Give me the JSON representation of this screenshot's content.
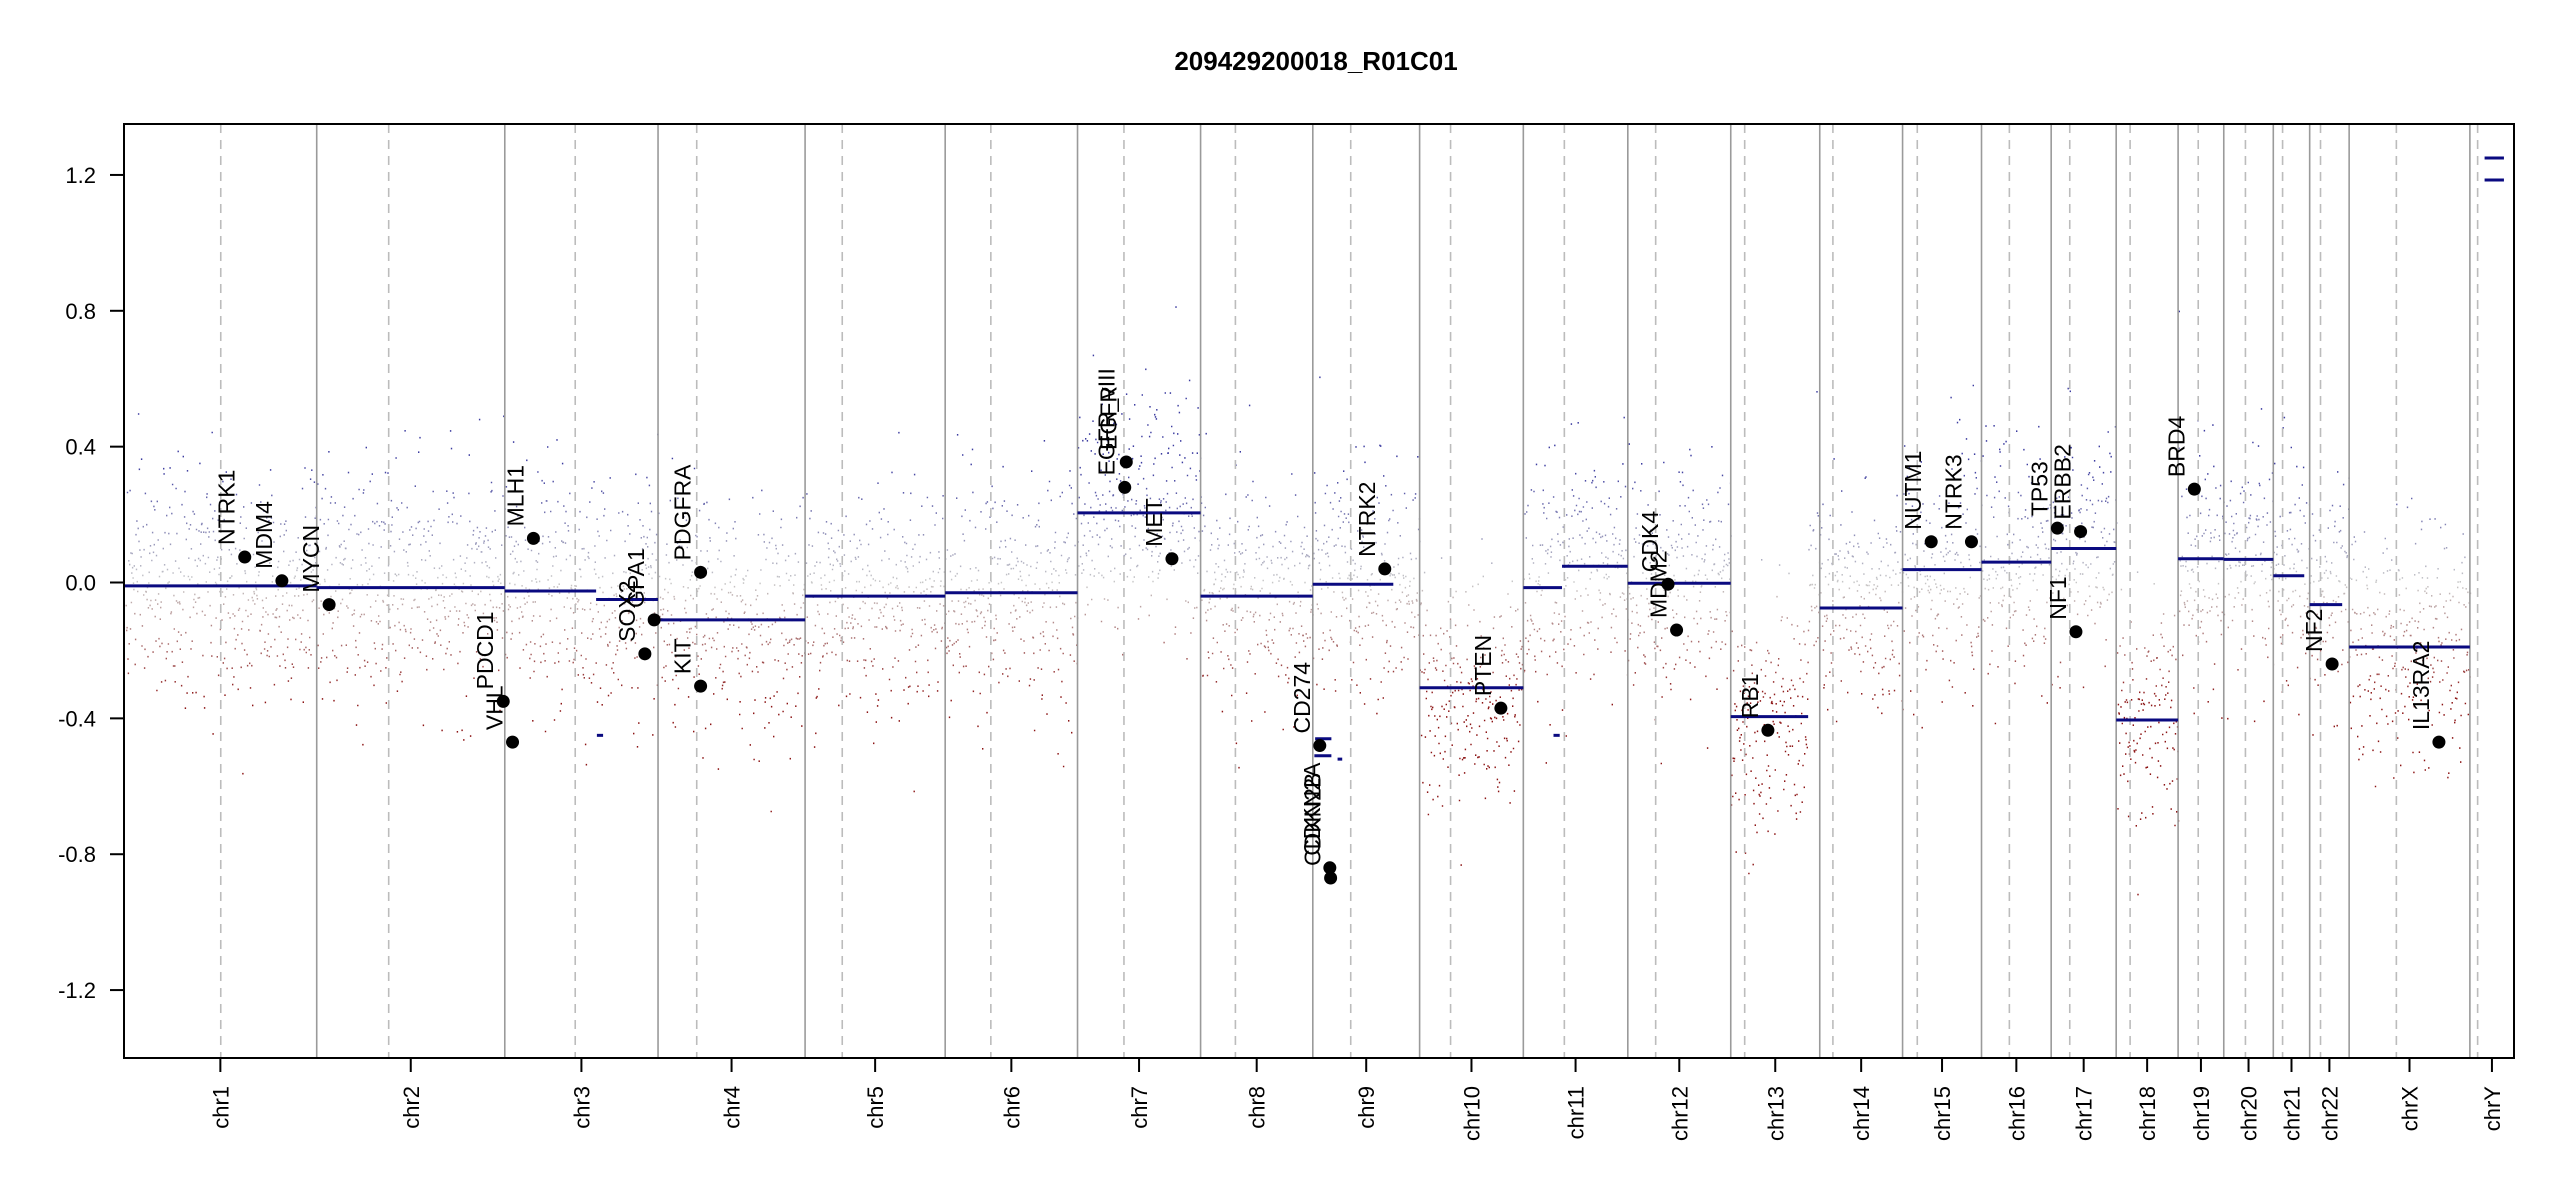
{
  "chart_data": {
    "type": "scatter",
    "title": "209429200018_R01C01",
    "xlabel": "",
    "ylabel": "",
    "ylim": [
      -1.4,
      1.35
    ],
    "y_ticks": [
      {
        "value": 1.2,
        "label": "1.2"
      },
      {
        "value": 0.8,
        "label": "0.8"
      },
      {
        "value": 0.4,
        "label": "0.4"
      },
      {
        "value": 0.0,
        "label": "0.0"
      },
      {
        "value": -0.4,
        "label": "-0.4"
      },
      {
        "value": -0.8,
        "label": "-0.8"
      },
      {
        "value": -1.2,
        "label": "-1.2"
      }
    ],
    "grid": false,
    "colors": {
      "gain": "#2b2b8f",
      "loss": "#8b1a1a",
      "neutral": "#b5b5b5",
      "segment": "#0a0a80",
      "boundary": "#9a9a9a",
      "centromere": "#bcbcbc"
    },
    "chromosomes": [
      {
        "name": "chr1",
        "start": 0,
        "end": 249,
        "centromere": 125
      },
      {
        "name": "chr2",
        "start": 249,
        "end": 492,
        "centromere": 342
      },
      {
        "name": "chr3",
        "start": 492,
        "end": 690,
        "centromere": 583
      },
      {
        "name": "chr4",
        "start": 690,
        "end": 880,
        "centromere": 740
      },
      {
        "name": "chr5",
        "start": 880,
        "end": 1061,
        "centromere": 928
      },
      {
        "name": "chr6",
        "start": 1061,
        "end": 1232,
        "centromere": 1120
      },
      {
        "name": "chr7",
        "start": 1232,
        "end": 1391,
        "centromere": 1292
      },
      {
        "name": "chr8",
        "start": 1391,
        "end": 1536,
        "centromere": 1436
      },
      {
        "name": "chr9",
        "start": 1536,
        "end": 1674,
        "centromere": 1585
      },
      {
        "name": "chr10",
        "start": 1674,
        "end": 1808,
        "centromere": 1714
      },
      {
        "name": "chr11",
        "start": 1808,
        "end": 1943,
        "centromere": 1861
      },
      {
        "name": "chr12",
        "start": 1943,
        "end": 2076,
        "centromere": 1979
      },
      {
        "name": "chr13",
        "start": 2076,
        "end": 2191,
        "centromere": 2094
      },
      {
        "name": "chr14",
        "start": 2191,
        "end": 2298,
        "centromere": 2208
      },
      {
        "name": "chr15",
        "start": 2298,
        "end": 2400,
        "centromere": 2317
      },
      {
        "name": "chr16",
        "start": 2400,
        "end": 2490,
        "centromere": 2436
      },
      {
        "name": "chr17",
        "start": 2490,
        "end": 2574,
        "centromere": 2514
      },
      {
        "name": "chr18",
        "start": 2574,
        "end": 2654,
        "centromere": 2592
      },
      {
        "name": "chr19",
        "start": 2654,
        "end": 2713,
        "centromere": 2680
      },
      {
        "name": "chr20",
        "start": 2713,
        "end": 2777,
        "centromere": 2741
      },
      {
        "name": "chr21",
        "start": 2777,
        "end": 2824,
        "centromere": 2789
      },
      {
        "name": "chr22",
        "start": 2824,
        "end": 2875,
        "centromere": 2838
      },
      {
        "name": "chrX",
        "start": 2875,
        "end": 3031,
        "centromere": 2936
      },
      {
        "name": "chrY",
        "start": 3031,
        "end": 3088,
        "centromere": 3041
      }
    ],
    "segments": [
      {
        "x0": 0,
        "x1": 249,
        "y": -0.01
      },
      {
        "x0": 249,
        "x1": 492,
        "y": -0.015
      },
      {
        "x0": 492,
        "x1": 610,
        "y": -0.025
      },
      {
        "x0": 610,
        "x1": 690,
        "y": -0.05
      },
      {
        "x0": 690,
        "x1": 880,
        "y": -0.11
      },
      {
        "x0": 880,
        "x1": 1061,
        "y": -0.04
      },
      {
        "x0": 1061,
        "x1": 1232,
        "y": -0.03
      },
      {
        "x0": 1232,
        "x1": 1391,
        "y": 0.205
      },
      {
        "x0": 1391,
        "x1": 1536,
        "y": -0.04
      },
      {
        "x0": 1536,
        "x1": 1640,
        "y": -0.005
      },
      {
        "x0": 1674,
        "x1": 1808,
        "y": -0.31
      },
      {
        "x0": 1808,
        "x1": 1858,
        "y": -0.015
      },
      {
        "x0": 1858,
        "x1": 1943,
        "y": 0.048
      },
      {
        "x0": 1943,
        "x1": 2076,
        "y": -0.002
      },
      {
        "x0": 2076,
        "x1": 2176,
        "y": -0.395
      },
      {
        "x0": 2191,
        "x1": 2298,
        "y": -0.075
      },
      {
        "x0": 2298,
        "x1": 2400,
        "y": 0.038
      },
      {
        "x0": 2400,
        "x1": 2490,
        "y": 0.06
      },
      {
        "x0": 2490,
        "x1": 2574,
        "y": 0.1
      },
      {
        "x0": 2574,
        "x1": 2654,
        "y": -0.405
      },
      {
        "x0": 2654,
        "x1": 2713,
        "y": 0.07
      },
      {
        "x0": 2713,
        "x1": 2777,
        "y": 0.068
      },
      {
        "x0": 2777,
        "x1": 2817,
        "y": 0.02
      },
      {
        "x0": 2824,
        "x1": 2866,
        "y": -0.065
      },
      {
        "x0": 2875,
        "x1": 3031,
        "y": -0.19
      },
      {
        "x0": 3050,
        "x1": 3075,
        "y": 1.185
      },
      {
        "x0": 3050,
        "x1": 3075,
        "y": 1.25
      },
      {
        "x0": 1847,
        "x1": 1855,
        "y": -0.45
      },
      {
        "x0": 1539,
        "x1": 1560,
        "y": -0.46
      },
      {
        "x0": 1568,
        "x1": 1574,
        "y": -0.52
      },
      {
        "x0": 611,
        "x1": 619,
        "y": -0.45
      },
      {
        "x0": 1538,
        "x1": 1560,
        "y": -0.51
      }
    ],
    "genes": [
      {
        "name": "NTRK1",
        "x": 156,
        "y": 0.075
      },
      {
        "name": "MDM4",
        "x": 204,
        "y": 0.005
      },
      {
        "name": "MYCN",
        "x": 265,
        "y": -0.065
      },
      {
        "name": "PDCD1",
        "x": 490,
        "y": -0.35
      },
      {
        "name": "VHL",
        "x": 502,
        "y": -0.47
      },
      {
        "name": "MLH1",
        "x": 529,
        "y": 0.13
      },
      {
        "name": "SOX2",
        "x": 673,
        "y": -0.21
      },
      {
        "name": "GPA1",
        "x": 685,
        "y": -0.11
      },
      {
        "name": "PDGFRA",
        "x": 745,
        "y": 0.03
      },
      {
        "name": "KIT",
        "x": 745,
        "y": -0.305
      },
      {
        "name": "EGFR",
        "x": 1295,
        "y": 0.355
      },
      {
        "name": "EGFR_vIII",
        "x": 1293,
        "y": 0.28
      },
      {
        "name": "MET",
        "x": 1354,
        "y": 0.07
      },
      {
        "name": "CD274",
        "x": 1545,
        "y": -0.48
      },
      {
        "name": "CDKN2A",
        "x": 1558,
        "y": -0.84
      },
      {
        "name": "CDKN2B",
        "x": 1559,
        "y": -0.87
      },
      {
        "name": "NTRK2",
        "x": 1629,
        "y": 0.04
      },
      {
        "name": "PTEN",
        "x": 1779,
        "y": -0.37
      },
      {
        "name": "CDK4",
        "x": 1995,
        "y": -0.005
      },
      {
        "name": "MDM2",
        "x": 2006,
        "y": -0.14
      },
      {
        "name": "RB1",
        "x": 2124,
        "y": -0.435
      },
      {
        "name": "NUTM1",
        "x": 2335,
        "y": 0.12
      },
      {
        "name": "NTRK3",
        "x": 2387,
        "y": 0.12
      },
      {
        "name": "TP53",
        "x": 2498,
        "y": 0.16
      },
      {
        "name": "ERBB2",
        "x": 2528,
        "y": 0.15
      },
      {
        "name": "NF1",
        "x": 2522,
        "y": -0.145
      },
      {
        "name": "BRD4",
        "x": 2675,
        "y": 0.275
      },
      {
        "name": "NF2",
        "x": 2853,
        "y": -0.24
      },
      {
        "name": "IL13RA2",
        "x": 2991,
        "y": -0.47
      }
    ]
  }
}
